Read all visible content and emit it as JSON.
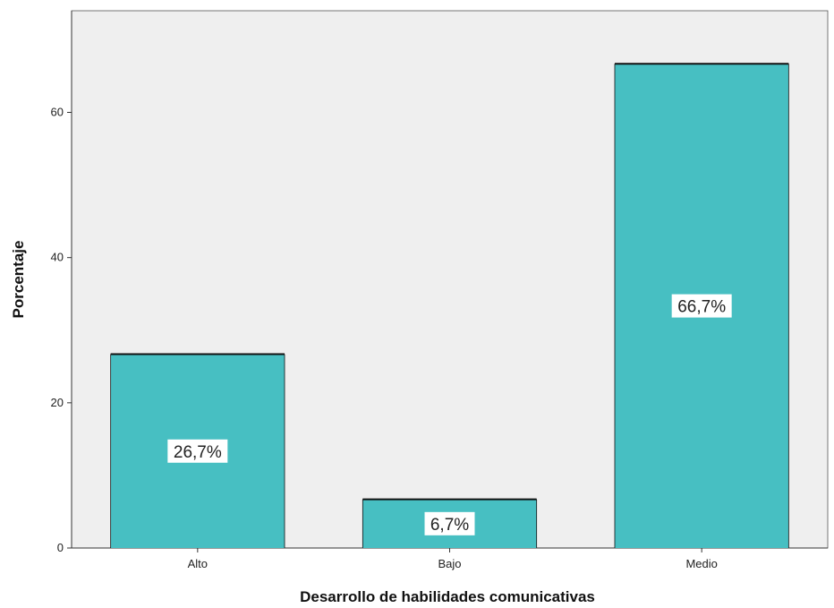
{
  "chart_data": {
    "type": "bar",
    "categories": [
      "Alto",
      "Bajo",
      "Medio"
    ],
    "values": [
      26.7,
      6.7,
      66.7
    ],
    "data_labels": [
      "26,7%",
      "6,7%",
      "66,7%"
    ],
    "title": "",
    "xlabel": "Desarrollo de habilidades comunicativas",
    "ylabel": "Porcentaje",
    "ylim": [
      0,
      74
    ],
    "yticks": [
      0,
      20,
      40,
      60
    ],
    "grid": false,
    "legend": "none",
    "colors": {
      "bar": "#47bfc2",
      "plot_background": "#efefef",
      "bar_outline": "#111111",
      "label_box": "#ffffff"
    }
  }
}
